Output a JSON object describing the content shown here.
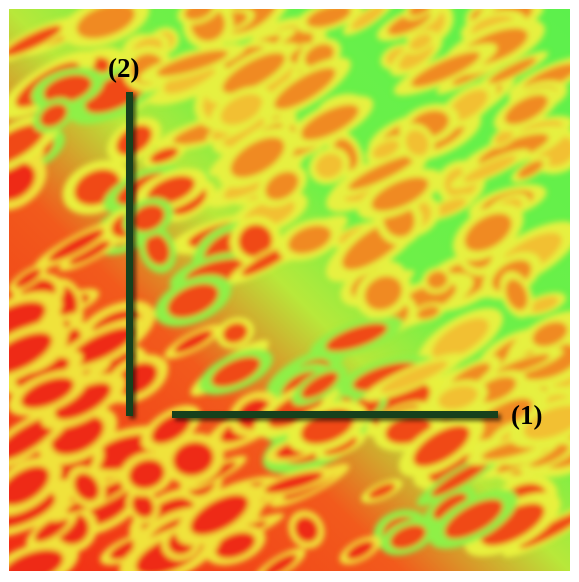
{
  "annotations": [
    {
      "label": "(1)"
    },
    {
      "label": "(2)"
    }
  ]
}
